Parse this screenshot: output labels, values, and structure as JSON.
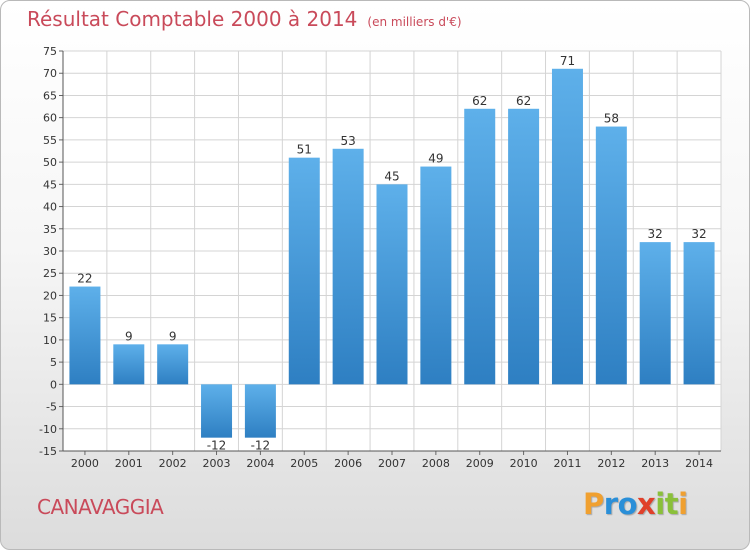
{
  "header": {
    "title": "Résultat Comptable 2000 à 2014",
    "unit_note": "(en milliers d'€)"
  },
  "footer": {
    "commune": "CANAVAGGIA",
    "brand": {
      "text": "Proxiti",
      "letter_colors": [
        "#f0a030",
        "#2a8fd8",
        "#2a8fd8",
        "#e0402a",
        "#8ac03a",
        "#8ac03a",
        "#f0a030"
      ]
    }
  },
  "colors": {
    "title": "#c94a5a",
    "bar_light": "#5eb0ea",
    "bar_dark": "#2e7fc2",
    "grid": "#d4d4d4"
  },
  "chart_data": {
    "type": "bar",
    "title": "Résultat Comptable 2000 à 2014",
    "subtitle": "(en milliers d'€)",
    "categories": [
      "2000",
      "2001",
      "2002",
      "2003",
      "2004",
      "2005",
      "2006",
      "2007",
      "2008",
      "2009",
      "2010",
      "2011",
      "2012",
      "2013",
      "2014"
    ],
    "values": [
      22,
      9,
      9,
      -12,
      -12,
      51,
      53,
      45,
      49,
      62,
      62,
      71,
      58,
      32,
      32
    ],
    "ylim": [
      -15,
      75
    ],
    "yticks": [
      -15,
      -10,
      -5,
      0,
      5,
      10,
      15,
      20,
      25,
      30,
      35,
      40,
      45,
      50,
      55,
      60,
      65,
      70,
      75
    ],
    "grid": true,
    "xlabel": "",
    "ylabel": ""
  }
}
